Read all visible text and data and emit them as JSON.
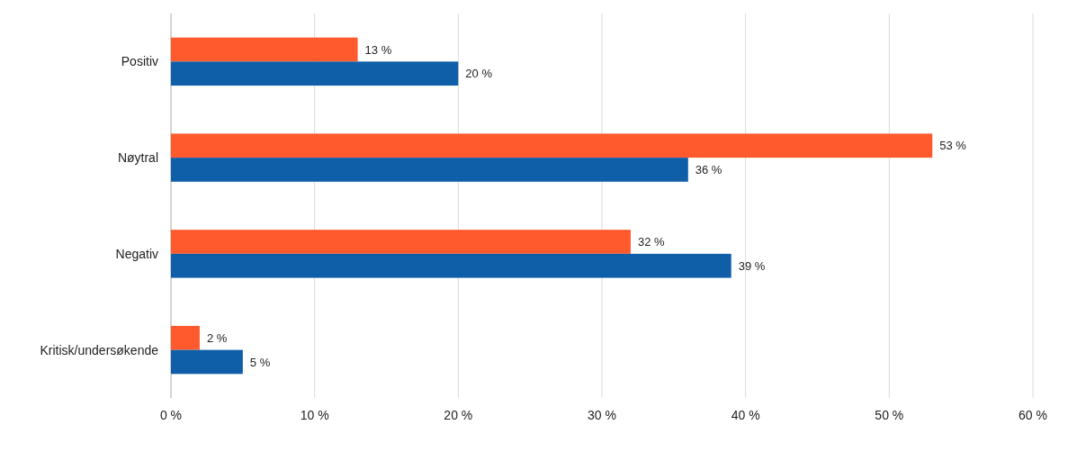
{
  "chart_data": {
    "type": "bar",
    "orientation": "horizontal",
    "categories": [
      "Positiv",
      "Nøytral",
      "Negativ",
      "Kritisk/undersøkende"
    ],
    "series": [
      {
        "color": "#ff5a2e",
        "values": [
          13,
          53,
          32,
          2
        ],
        "value_labels": [
          "13 %",
          "53 %",
          "32 %",
          "2 %"
        ]
      },
      {
        "color": "#0f5ea8",
        "values": [
          20,
          36,
          39,
          5
        ],
        "value_labels": [
          "20 %",
          "36 %",
          "39 %",
          "5 %"
        ]
      }
    ],
    "xlim": [
      0,
      60
    ],
    "xticks": [
      {
        "value": 0,
        "label": "0 %"
      },
      {
        "value": 10,
        "label": "10 %"
      },
      {
        "value": 20,
        "label": "20 %"
      },
      {
        "value": 30,
        "label": "30 %"
      },
      {
        "value": 40,
        "label": "40 %"
      },
      {
        "value": 50,
        "label": "50 %"
      },
      {
        "value": 60,
        "label": "60 %"
      }
    ],
    "grid": "x"
  }
}
